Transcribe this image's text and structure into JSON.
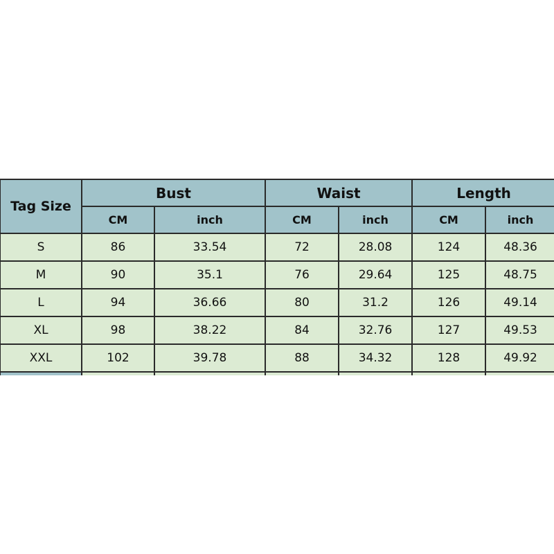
{
  "table": {
    "corner_label": "Tag Size",
    "groups": [
      "Bust",
      "Waist",
      "Length"
    ],
    "units": [
      "CM",
      "inch",
      "CM",
      "inch",
      "CM",
      "inch"
    ],
    "rows": [
      {
        "size": "S",
        "values": [
          "86",
          "33.54",
          "72",
          "28.08",
          "124",
          "48.36"
        ]
      },
      {
        "size": "M",
        "values": [
          "90",
          "35.1",
          "76",
          "29.64",
          "125",
          "48.75"
        ]
      },
      {
        "size": "L",
        "values": [
          "94",
          "36.66",
          "80",
          "31.2",
          "126",
          "49.14"
        ]
      },
      {
        "size": "XL",
        "values": [
          "98",
          "38.22",
          "84",
          "32.76",
          "127",
          "49.53"
        ]
      },
      {
        "size": "XXL",
        "values": [
          "102",
          "39.78",
          "88",
          "34.32",
          "128",
          "49.92"
        ]
      }
    ]
  },
  "colors": {
    "header": "#a1c3ca",
    "cell": "#dcebd3",
    "border": "#2a2a2a"
  }
}
